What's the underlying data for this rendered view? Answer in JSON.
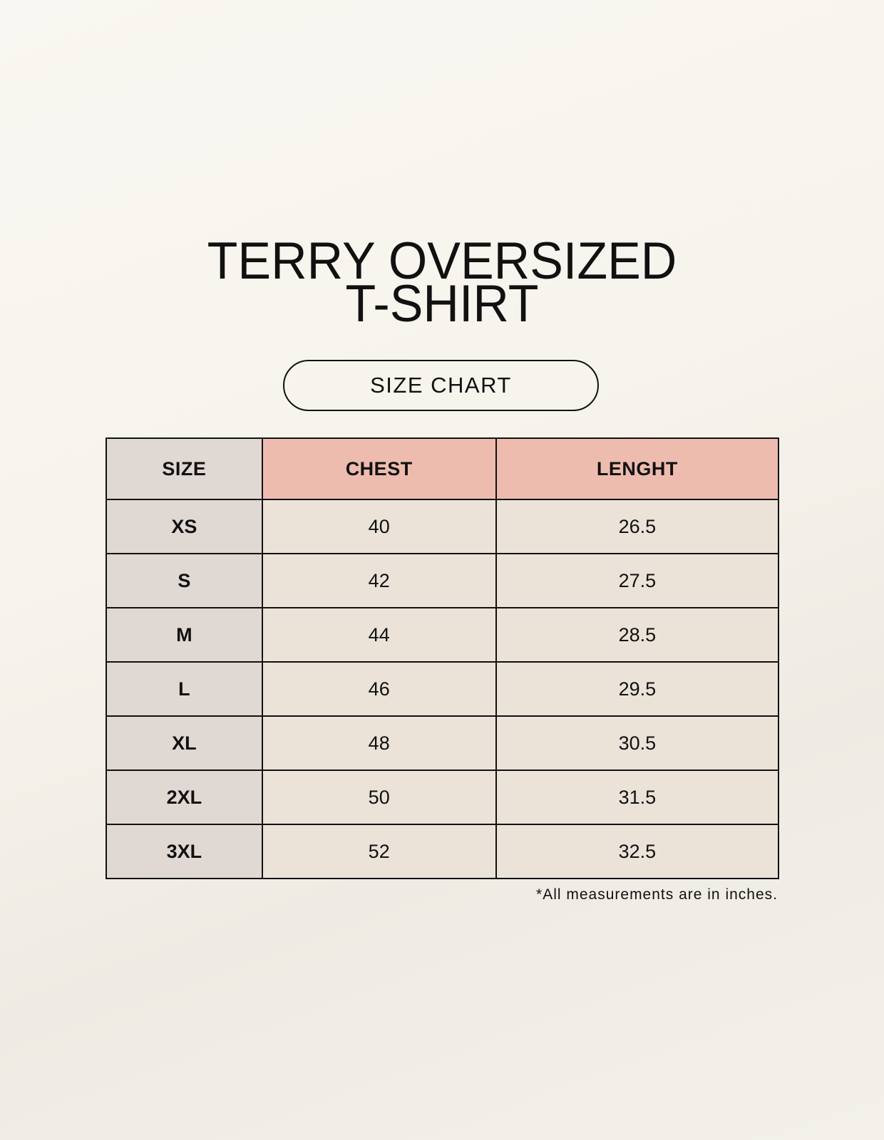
{
  "title": {
    "line1": "TERRY OVERSIZED",
    "line2": "T-SHIRT"
  },
  "badge": "SIZE CHART",
  "colors": {
    "size_column": "#e0d8d3",
    "header_accent": "#eebcaf",
    "cell": "#ebe3d8",
    "background": "#f8f6f0"
  },
  "table": {
    "headers": [
      "SIZE",
      "CHEST",
      "LENGHT"
    ],
    "rows": [
      [
        "XS",
        "40",
        "26.5"
      ],
      [
        "S",
        "42",
        "27.5"
      ],
      [
        "M",
        "44",
        "28.5"
      ],
      [
        "L",
        "46",
        "29.5"
      ],
      [
        "XL",
        "48",
        "30.5"
      ],
      [
        "2XL",
        "50",
        "31.5"
      ],
      [
        "3XL",
        "52",
        "32.5"
      ]
    ]
  },
  "note": "*All measurements are in inches."
}
